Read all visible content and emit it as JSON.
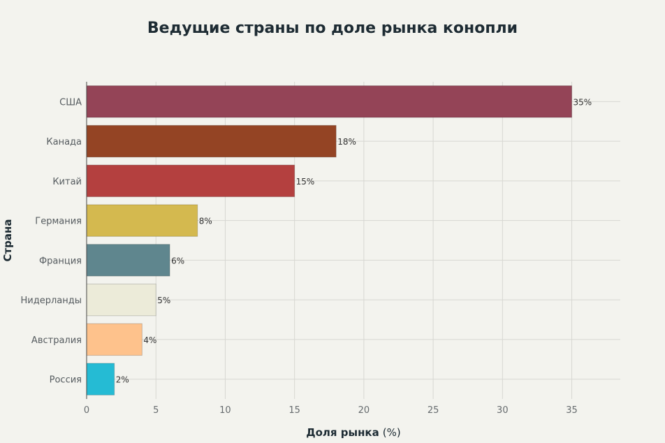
{
  "chart_data": {
    "type": "bar",
    "orientation": "horizontal",
    "title": "Ведущие страны по доле рынка конопли",
    "xlabel": "Доля рынка",
    "xlabel_unit": "(%)",
    "ylabel": "Страна",
    "categories": [
      "США",
      "Канада",
      "Китай",
      "Германия",
      "Франция",
      "Нидерланды",
      "Австралия",
      "Россия"
    ],
    "values": [
      35,
      18,
      15,
      8,
      6,
      5,
      4,
      2
    ],
    "data_labels": [
      "35%",
      "18%",
      "15%",
      "8%",
      "6%",
      "5%",
      "4%",
      "2%"
    ],
    "colors": [
      "#944457",
      "#944424",
      "#b4403f",
      "#d4b94f",
      "#5f868e",
      "#ecebd9",
      "#fec28c",
      "#25bbd4"
    ],
    "xlim": [
      0,
      38.5
    ],
    "xticks": [
      0,
      5,
      10,
      15,
      20,
      25,
      30,
      35
    ],
    "grid": true
  }
}
